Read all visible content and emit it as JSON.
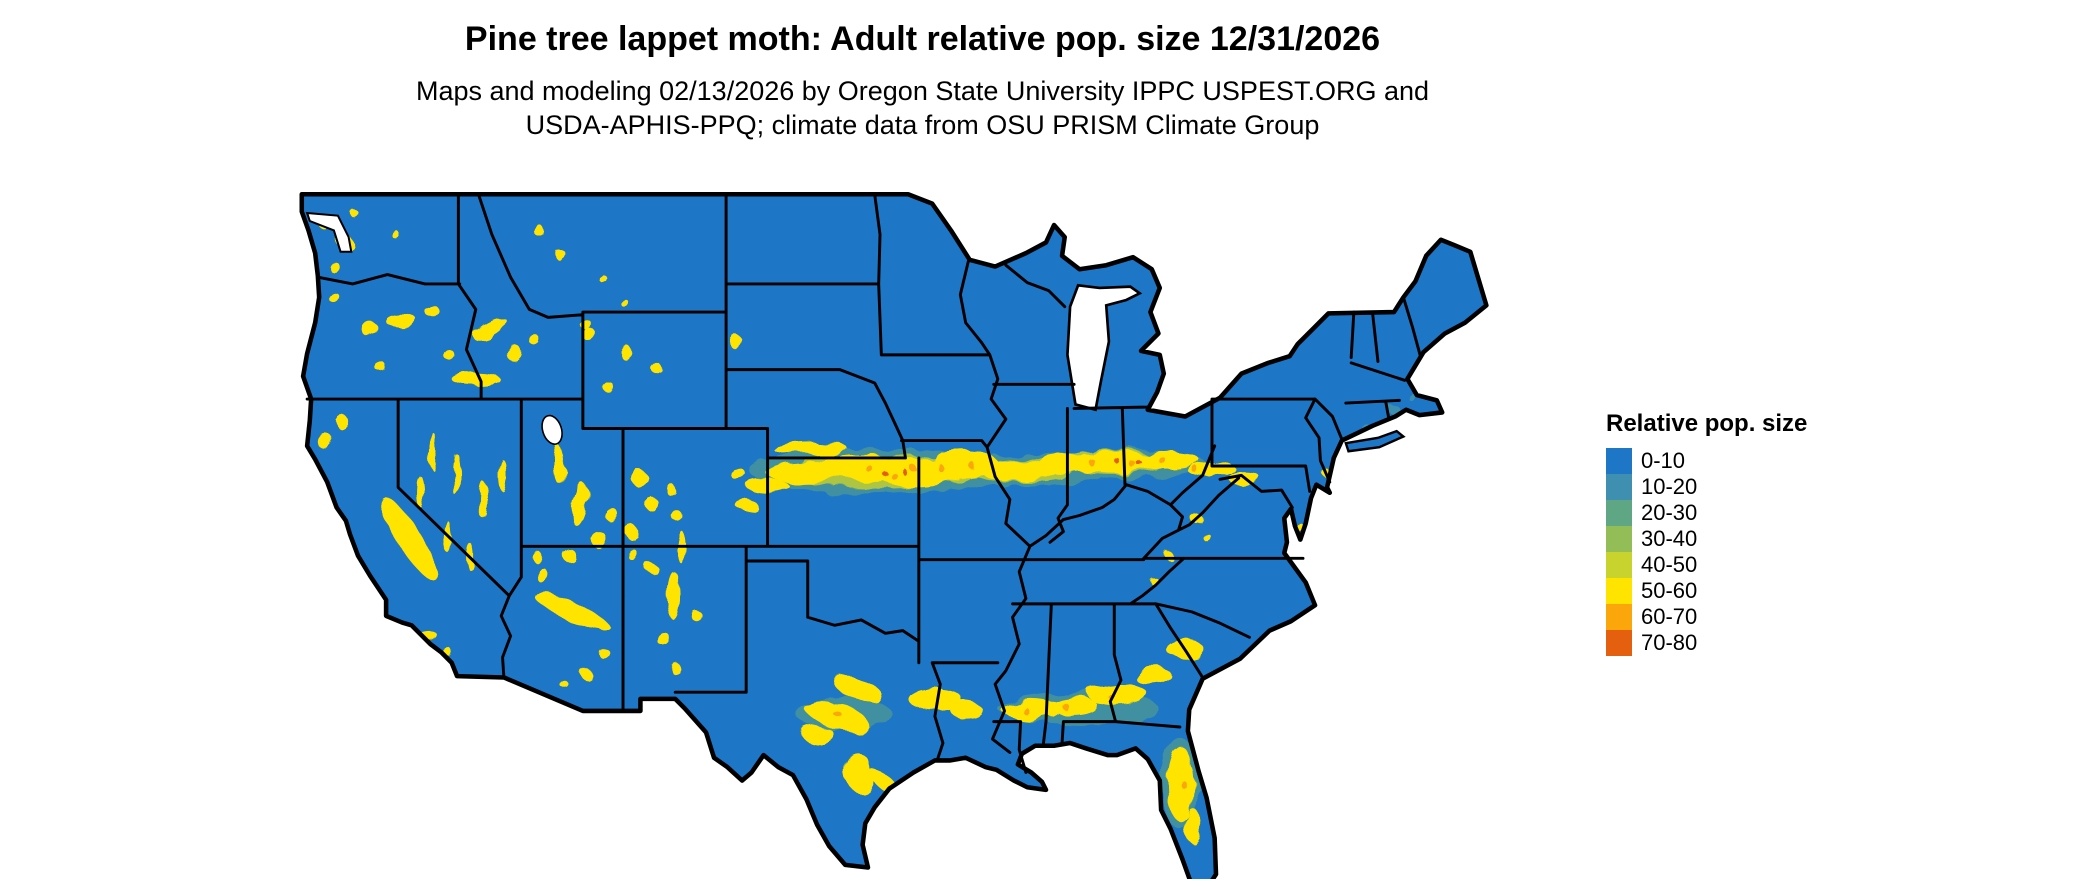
{
  "title": "Pine tree lappet moth: Adult relative pop. size 12/31/2026",
  "subtitle": "Maps and modeling 02/13/2026 by Oregon State University IPPC USPEST.ORG and USDA-APHIS-PPQ; climate data from OSU PRISM Climate Group",
  "legend": {
    "title": "Relative pop. size",
    "items": [
      {
        "label": "0-10",
        "color": "#1d76c6"
      },
      {
        "label": "10-20",
        "color": "#3e8fb0"
      },
      {
        "label": "20-30",
        "color": "#5fa784"
      },
      {
        "label": "30-40",
        "color": "#93bd56"
      },
      {
        "label": "40-50",
        "color": "#c9d32e"
      },
      {
        "label": "50-60",
        "color": "#ffe400"
      },
      {
        "label": "60-70",
        "color": "#fba60a"
      },
      {
        "label": "70-80",
        "color": "#e45f0e"
      }
    ]
  },
  "map": {
    "region": "Contiguous United States",
    "base_value_color": "#1d76c6",
    "hotspot_value_color": "#ffe400",
    "description": "Raster map mostly 0-10 (blue) with 40-60 (yellow) bands across the central plains into the Midwest, across the southern states, interior western mountain ranges, and central Florida; small 60-80 (orange) flecks inside the densest bands."
  }
}
